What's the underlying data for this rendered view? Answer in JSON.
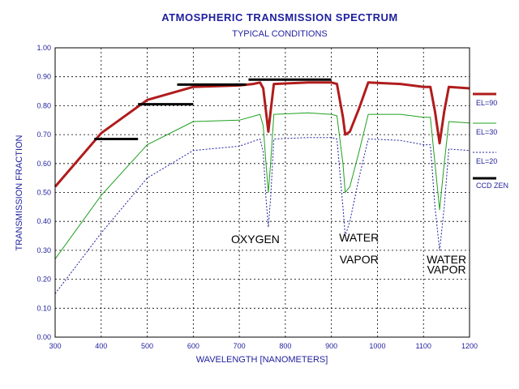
{
  "chart_data": {
    "type": "line",
    "title": "ATMOSPHERIC TRANSMISSION SPECTRUM",
    "subtitle": "TYPICAL CONDITIONS",
    "xlabel": "WAVELENGTH [NANOMETERS]",
    "ylabel": "TRANSMISSION FRACTION",
    "xlim": [
      300,
      1200
    ],
    "ylim": [
      0.0,
      1.0
    ],
    "xticks": [
      "300",
      "400",
      "500",
      "600",
      "700",
      "800",
      "900",
      "1000",
      "1100",
      "1200"
    ],
    "yticks": [
      "0.00",
      "0.10",
      "0.20",
      "0.30",
      "0.40",
      "0.50",
      "0.60",
      "0.70",
      "0.80",
      "0.90",
      "1.00"
    ],
    "grid": true,
    "legend_position": "right",
    "series": [
      {
        "name": "EL=90",
        "color": "#b01c1c",
        "style": "solid-thick",
        "points": [
          [
            300,
            0.52
          ],
          [
            400,
            0.705
          ],
          [
            500,
            0.82
          ],
          [
            600,
            0.865
          ],
          [
            700,
            0.87
          ],
          [
            730,
            0.875
          ],
          [
            745,
            0.88
          ],
          [
            752,
            0.86
          ],
          [
            758,
            0.78
          ],
          [
            763,
            0.71
          ],
          [
            768,
            0.78
          ],
          [
            775,
            0.875
          ],
          [
            850,
            0.88
          ],
          [
            900,
            0.88
          ],
          [
            912,
            0.875
          ],
          [
            925,
            0.76
          ],
          [
            930,
            0.7
          ],
          [
            940,
            0.71
          ],
          [
            960,
            0.79
          ],
          [
            980,
            0.88
          ],
          [
            1050,
            0.875
          ],
          [
            1100,
            0.865
          ],
          [
            1115,
            0.865
          ],
          [
            1125,
            0.78
          ],
          [
            1135,
            0.67
          ],
          [
            1145,
            0.78
          ],
          [
            1155,
            0.865
          ],
          [
            1200,
            0.86
          ]
        ]
      },
      {
        "name": "EL=30",
        "color": "#1fa01f",
        "style": "solid-thin",
        "points": [
          [
            300,
            0.27
          ],
          [
            400,
            0.49
          ],
          [
            500,
            0.665
          ],
          [
            600,
            0.745
          ],
          [
            700,
            0.75
          ],
          [
            745,
            0.77
          ],
          [
            752,
            0.73
          ],
          [
            758,
            0.6
          ],
          [
            763,
            0.5
          ],
          [
            768,
            0.6
          ],
          [
            775,
            0.77
          ],
          [
            850,
            0.775
          ],
          [
            900,
            0.77
          ],
          [
            912,
            0.765
          ],
          [
            925,
            0.6
          ],
          [
            930,
            0.5
          ],
          [
            940,
            0.52
          ],
          [
            960,
            0.64
          ],
          [
            980,
            0.77
          ],
          [
            1050,
            0.77
          ],
          [
            1100,
            0.76
          ],
          [
            1115,
            0.76
          ],
          [
            1125,
            0.6
          ],
          [
            1135,
            0.44
          ],
          [
            1145,
            0.6
          ],
          [
            1155,
            0.745
          ],
          [
            1200,
            0.74
          ]
        ]
      },
      {
        "name": "EL=20",
        "color": "#1f1f9e",
        "style": "dotted",
        "points": [
          [
            300,
            0.15
          ],
          [
            400,
            0.36
          ],
          [
            500,
            0.55
          ],
          [
            600,
            0.645
          ],
          [
            700,
            0.66
          ],
          [
            745,
            0.685
          ],
          [
            752,
            0.64
          ],
          [
            758,
            0.48
          ],
          [
            763,
            0.38
          ],
          [
            768,
            0.48
          ],
          [
            775,
            0.685
          ],
          [
            850,
            0.69
          ],
          [
            900,
            0.69
          ],
          [
            912,
            0.685
          ],
          [
            925,
            0.45
          ],
          [
            930,
            0.35
          ],
          [
            940,
            0.4
          ],
          [
            960,
            0.55
          ],
          [
            980,
            0.685
          ],
          [
            1050,
            0.68
          ],
          [
            1100,
            0.665
          ],
          [
            1115,
            0.665
          ],
          [
            1125,
            0.45
          ],
          [
            1135,
            0.3
          ],
          [
            1145,
            0.45
          ],
          [
            1155,
            0.65
          ],
          [
            1200,
            0.645
          ]
        ]
      },
      {
        "name": "CCD ZEN",
        "color": "#000000",
        "style": "step-segments",
        "segments": [
          [
            385,
            480,
            0.685
          ],
          [
            480,
            600,
            0.805
          ],
          [
            565,
            715,
            0.873
          ],
          [
            720,
            900,
            0.89
          ]
        ]
      }
    ],
    "annotations": [
      {
        "text": "OXYGEN",
        "x": 735,
        "y": 0.325
      },
      {
        "text": "WATER",
        "x": 960,
        "y": 0.33
      },
      {
        "text": "VAPOR",
        "x": 960,
        "y": 0.255
      },
      {
        "text": "WATER",
        "x": 1150,
        "y": 0.255
      },
      {
        "text": "VAPOR",
        "x": 1150,
        "y": 0.22
      }
    ]
  }
}
